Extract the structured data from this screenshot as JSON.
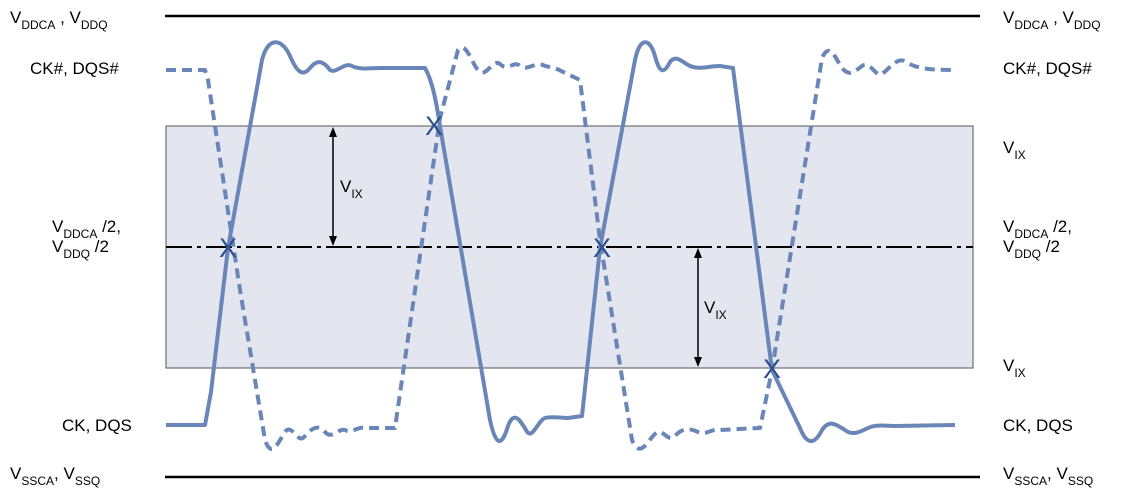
{
  "labels": {
    "top_rail_main_1": "V",
    "top_rail_sub_1": "DDCA",
    "top_rail_sep": " , ",
    "top_rail_main_2": "V",
    "top_rail_sub_2": "DDQ",
    "ck_bar": "CK#, DQS#",
    "vix_top": "V",
    "vix_top_sub": "IX",
    "vix_upper_arrow": "V",
    "vix_upper_arrow_sub": "IX",
    "mid_main_1": "V",
    "mid_sub_1": "DDCA",
    "mid_tail_1": " /2,",
    "mid_main_2": "V",
    "mid_sub_2": "DDQ",
    "mid_tail_2": " /2",
    "vix_lower_arrow": "V",
    "vix_lower_arrow_sub": "IX",
    "vix_bottom": "V",
    "vix_bottom_sub": "IX",
    "ck": "CK, DQS",
    "bottom_rail_main_1": "V",
    "bottom_rail_sub_1": "SSCA",
    "bottom_rail_sep": ", ",
    "bottom_rail_main_2": "V",
    "bottom_rail_sub_2": "SSQ"
  },
  "crossing_marker": "X",
  "colors": {
    "signal": "#6a86b8",
    "marker": "#2a4f8f",
    "band_fill": "#e3e5ef",
    "line": "#000000"
  }
}
